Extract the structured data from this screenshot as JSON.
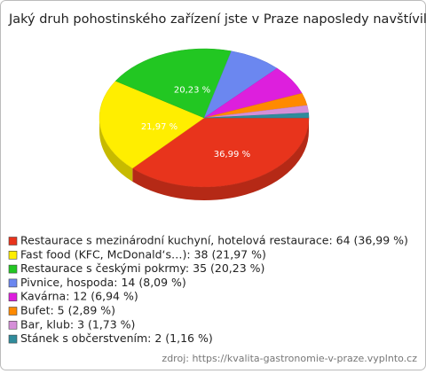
{
  "chart_data": {
    "type": "pie",
    "title": "Jaký druh pohostinského zařízení jste v Praze naposledy navštívil/a?",
    "categories": [
      "Restaurace s mezinárodní kuchyní, hotelová restaurace: 64 (36,99 %)",
      "Fast food (KFC, McDonald‘s…): 38 (21,97 %)",
      "Restaurace s českými pokrmy: 35 (20,23 %)",
      "Pivnice, hospoda: 14 (8,09 %)",
      "Kavárna: 12 (6,94 %)",
      "Bufet: 5 (2,89 %)",
      "Bar, klub: 3 (1,73 %)",
      "Stánek s občerstvením: 2 (1,16 %)"
    ],
    "values": [
      36.99,
      21.97,
      20.23,
      8.09,
      6.94,
      2.89,
      1.73,
      1.16
    ],
    "value_labels": [
      "36,99 %",
      "21,97 %",
      "20,23 %",
      null,
      null,
      null,
      null,
      null
    ],
    "colors": [
      "#e8341c",
      "#ffee00",
      "#22c722",
      "#6b87f0",
      "#dd1fdd",
      "#ff8a00",
      "#d58fd8",
      "#2f8c9c"
    ],
    "source": "zdroj: https://kvalita-gastronomie-v-praze.vyplnto.cz"
  }
}
